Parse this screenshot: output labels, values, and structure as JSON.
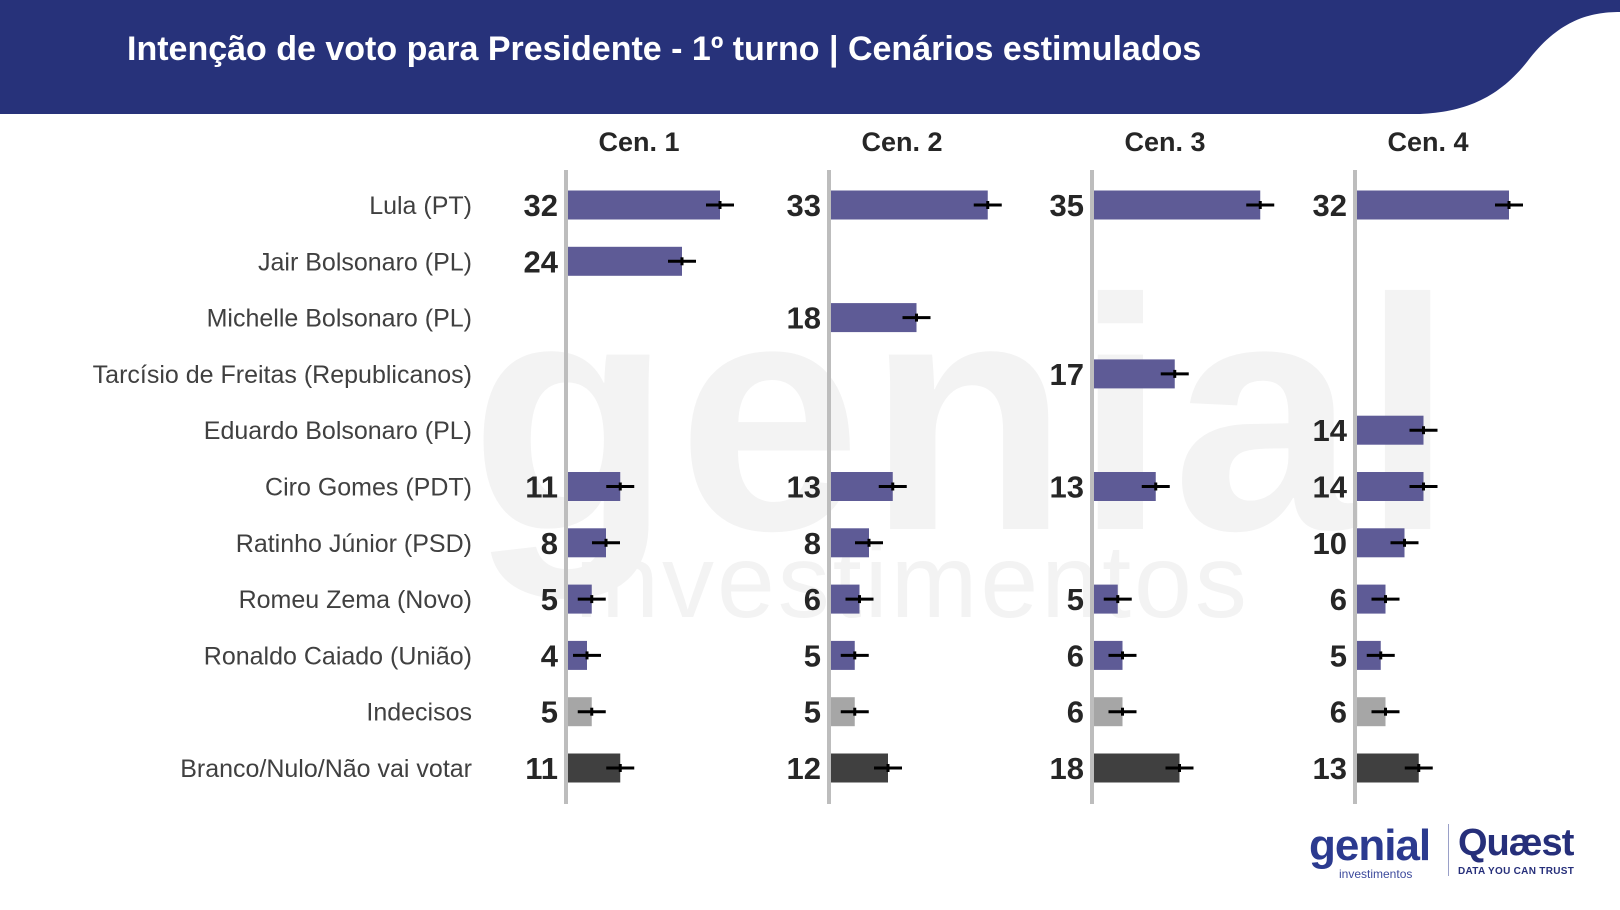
{
  "header": {
    "title": "Intenção de voto para Presidente - 1º turno | Cenários estimulados"
  },
  "colors": {
    "header": "#27327a",
    "candidate": "#5e5b96",
    "undecided": "#a6a6a6",
    "blank": "#404040",
    "axis": "#bdbdbd",
    "value_text": "#262626",
    "label_text": "#404040"
  },
  "watermark": {
    "main": "genial",
    "sub": "investimentos"
  },
  "logos": {
    "genial": "genial",
    "genial_sub": "investimentos",
    "quaest": "Quæst",
    "quaest_sub": "DATA YOU CAN TRUST"
  },
  "chart_data": {
    "type": "bar",
    "orientation": "horizontal",
    "title": "Intenção de voto para Presidente - 1º turno | Cenários estimulados",
    "categories": [
      "Lula (PT)",
      "Jair Bolsonaro (PL)",
      "Michelle Bolsonaro (PL)",
      "Tarcísio de Freitas (Republicanos)",
      "Eduardo Bolsonaro (PL)",
      "Ciro Gomes (PDT)",
      "Ratinho Júnior (PSD)",
      "Romeu Zema (Novo)",
      "Ronaldo Caiado (União)",
      "Indecisos",
      "Branco/Nulo/Não vai votar"
    ],
    "category_kind": [
      "candidate",
      "candidate",
      "candidate",
      "candidate",
      "candidate",
      "candidate",
      "candidate",
      "candidate",
      "candidate",
      "undecided",
      "blank"
    ],
    "series": [
      {
        "name": "Cen. 1",
        "values": [
          32,
          24,
          null,
          null,
          null,
          11,
          8,
          5,
          4,
          5,
          11
        ]
      },
      {
        "name": "Cen. 2",
        "values": [
          33,
          null,
          18,
          null,
          null,
          13,
          8,
          6,
          5,
          5,
          12
        ]
      },
      {
        "name": "Cen. 3",
        "values": [
          35,
          null,
          null,
          17,
          null,
          13,
          null,
          5,
          6,
          6,
          18
        ]
      },
      {
        "name": "Cen. 4",
        "values": [
          32,
          null,
          null,
          null,
          14,
          14,
          10,
          6,
          5,
          6,
          13
        ]
      }
    ],
    "error_bars": true,
    "xlim": [
      0,
      40
    ]
  }
}
